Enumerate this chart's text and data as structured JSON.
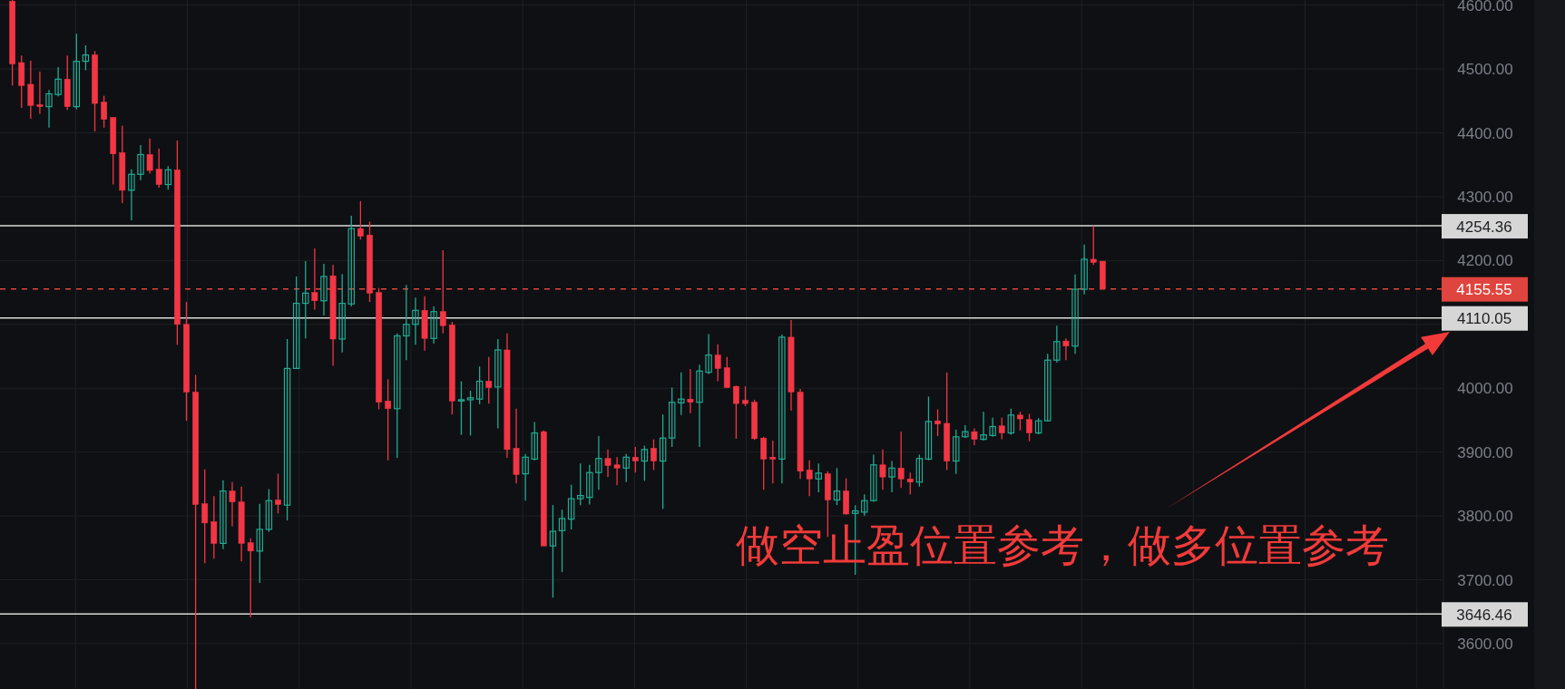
{
  "chart_data": {
    "type": "candlestick",
    "categories": [
      null,
      null,
      null,
      null,
      null,
      null,
      null,
      null,
      null,
      null,
      null,
      null,
      null,
      null,
      null,
      null,
      null,
      null,
      null,
      null,
      null,
      null,
      null,
      null,
      null,
      null,
      null,
      null,
      null,
      null,
      null,
      null,
      null,
      null,
      null,
      null,
      null,
      null,
      null,
      null,
      null,
      null,
      null,
      null,
      null,
      null,
      null,
      null,
      null,
      null,
      null,
      null,
      null,
      null,
      null,
      null,
      null,
      null,
      null,
      null,
      null,
      null,
      null,
      null,
      null,
      null,
      null,
      null,
      null,
      null,
      null,
      null,
      null,
      null,
      null,
      null,
      null,
      null,
      null,
      null,
      null,
      null,
      null,
      null,
      null,
      null,
      null,
      null,
      null,
      null,
      null,
      null,
      null,
      null,
      null,
      null,
      null,
      null,
      null,
      null,
      null,
      null,
      null,
      null,
      null,
      null,
      null,
      null,
      null,
      null,
      null,
      null,
      null,
      null,
      null,
      null,
      null,
      null,
      null,
      null,
      null,
      null,
      null,
      null,
      null,
      null,
      null,
      null,
      null,
      null,
      null,
      null,
      null,
      null,
      null,
      null,
      null,
      null,
      null,
      null,
      null,
      null,
      null,
      null,
      null,
      null,
      null,
      null,
      null,
      null,
      null,
      null,
      null,
      null,
      null,
      null
    ],
    "ohlc": [
      [
        4606,
        4608,
        4474,
        4508
      ],
      [
        4510,
        4521,
        4439,
        4474
      ],
      [
        4476,
        4513,
        4422,
        4443
      ],
      [
        4444,
        4496,
        4430,
        4441
      ],
      [
        4441,
        4467,
        4408,
        4461
      ],
      [
        4460,
        4503,
        4457,
        4484
      ],
      [
        4484,
        4521,
        4436,
        4441
      ],
      [
        4441,
        4555,
        4437,
        4512
      ],
      [
        4512,
        4537,
        4498,
        4522
      ],
      [
        4522,
        4528,
        4402,
        4446
      ],
      [
        4448,
        4458,
        4408,
        4421
      ],
      [
        4424,
        4424,
        4319,
        4367
      ],
      [
        4369,
        4411,
        4290,
        4310
      ],
      [
        4310,
        4343,
        4263,
        4335
      ],
      [
        4335,
        4381,
        4326,
        4366
      ],
      [
        4366,
        4391,
        4336,
        4341
      ],
      [
        4343,
        4375,
        4314,
        4319
      ],
      [
        4319,
        4348,
        4311,
        4342
      ],
      [
        4342,
        4388,
        4068,
        4100
      ],
      [
        4100,
        4135,
        3949,
        3994
      ],
      [
        3994,
        4021,
        3529,
        3818
      ],
      [
        3819,
        3873,
        3726,
        3789
      ],
      [
        3791,
        3831,
        3733,
        3757
      ],
      [
        3757,
        3856,
        3748,
        3839
      ],
      [
        3839,
        3853,
        3784,
        3822
      ],
      [
        3822,
        3846,
        3729,
        3757
      ],
      [
        3758,
        3765,
        3641,
        3745
      ],
      [
        3745,
        3819,
        3695,
        3779
      ],
      [
        3779,
        3842,
        3775,
        3824
      ],
      [
        3825,
        3866,
        3804,
        3818
      ],
      [
        3817,
        4077,
        3793,
        4031
      ],
      [
        4031,
        4175,
        4031,
        4133
      ],
      [
        4133,
        4199,
        4078,
        4149
      ],
      [
        4150,
        4219,
        4123,
        4137
      ],
      [
        4137,
        4195,
        4114,
        4175
      ],
      [
        4176,
        4193,
        4035,
        4077
      ],
      [
        4077,
        4179,
        4056,
        4133
      ],
      [
        4132,
        4270,
        4128,
        4250
      ],
      [
        4250,
        4293,
        4233,
        4238
      ],
      [
        4240,
        4261,
        4135,
        4149
      ],
      [
        4150,
        4157,
        3967,
        3978
      ],
      [
        3980,
        4014,
        3887,
        3968
      ],
      [
        3968,
        4086,
        3891,
        4082
      ],
      [
        4082,
        4162,
        4044,
        4100
      ],
      [
        4100,
        4142,
        4068,
        4122
      ],
      [
        4122,
        4144,
        4059,
        4078
      ],
      [
        4078,
        4128,
        4070,
        4120
      ],
      [
        4120,
        4216,
        4086,
        4098
      ],
      [
        4099,
        4104,
        3959,
        3980
      ],
      [
        3980,
        4011,
        3927,
        3982
      ],
      [
        3982,
        3996,
        3926,
        3985
      ],
      [
        3983,
        4034,
        3975,
        4011
      ],
      [
        4011,
        4049,
        3976,
        4001
      ],
      [
        4002,
        4077,
        3937,
        4060
      ],
      [
        4060,
        4086,
        3891,
        3904
      ],
      [
        3906,
        3968,
        3851,
        3865
      ],
      [
        3866,
        3897,
        3824,
        3892
      ],
      [
        3889,
        3947,
        3887,
        3930
      ],
      [
        3932,
        3934,
        3753,
        3753
      ],
      [
        3753,
        3817,
        3672,
        3776
      ],
      [
        3777,
        3810,
        3712,
        3796
      ],
      [
        3795,
        3849,
        3779,
        3827
      ],
      [
        3827,
        3882,
        3817,
        3832
      ],
      [
        3829,
        3880,
        3818,
        3868
      ],
      [
        3868,
        3925,
        3841,
        3890
      ],
      [
        3890,
        3904,
        3861,
        3879
      ],
      [
        3880,
        3892,
        3848,
        3875
      ],
      [
        3875,
        3897,
        3853,
        3892
      ],
      [
        3892,
        3908,
        3868,
        3886
      ],
      [
        3886,
        3910,
        3855,
        3904
      ],
      [
        3906,
        3920,
        3872,
        3886
      ],
      [
        3886,
        3959,
        3811,
        3922
      ],
      [
        3922,
        4001,
        3908,
        3978
      ],
      [
        3977,
        4025,
        3958,
        3983
      ],
      [
        3983,
        4030,
        3961,
        3978
      ],
      [
        3978,
        4037,
        3908,
        4027
      ],
      [
        4025,
        4085,
        4022,
        4052
      ],
      [
        4052,
        4069,
        4011,
        4031
      ],
      [
        4032,
        4049,
        4001,
        4001
      ],
      [
        4003,
        4004,
        3921,
        3976
      ],
      [
        3981,
        4003,
        3972,
        3976
      ],
      [
        3978,
        3982,
        3919,
        3921
      ],
      [
        3922,
        3924,
        3841,
        3889
      ],
      [
        3892,
        3918,
        3851,
        3889
      ],
      [
        3889,
        4084,
        3851,
        4080
      ],
      [
        4080,
        4107,
        3965,
        3994
      ],
      [
        3994,
        3999,
        3858,
        3870
      ],
      [
        3872,
        3887,
        3831,
        3858
      ],
      [
        3858,
        3882,
        3837,
        3867
      ],
      [
        3866,
        3870,
        3767,
        3825
      ],
      [
        3825,
        3875,
        3817,
        3839
      ],
      [
        3839,
        3859,
        3802,
        3803
      ],
      [
        3804,
        3817,
        3708,
        3808
      ],
      [
        3806,
        3834,
        3800,
        3824
      ],
      [
        3824,
        3896,
        3822,
        3880
      ],
      [
        3880,
        3904,
        3841,
        3861
      ],
      [
        3861,
        3886,
        3837,
        3875
      ],
      [
        3875,
        3932,
        3844,
        3858
      ],
      [
        3858,
        3868,
        3834,
        3853
      ],
      [
        3853,
        3896,
        3846,
        3890
      ],
      [
        3889,
        3987,
        3887,
        3948
      ],
      [
        3949,
        3967,
        3925,
        3944
      ],
      [
        3945,
        4025,
        3872,
        3886
      ],
      [
        3886,
        3935,
        3866,
        3924
      ],
      [
        3924,
        3942,
        3922,
        3932
      ],
      [
        3932,
        3937,
        3911,
        3920
      ],
      [
        3920,
        3963,
        3918,
        3927
      ],
      [
        3926,
        3954,
        3924,
        3940
      ],
      [
        3941,
        3954,
        3920,
        3930
      ],
      [
        3930,
        3968,
        3927,
        3958
      ],
      [
        3958,
        3963,
        3934,
        3952
      ],
      [
        3951,
        3960,
        3917,
        3930
      ],
      [
        3930,
        3953,
        3928,
        3949
      ],
      [
        3949,
        4054,
        3948,
        4044
      ],
      [
        4044,
        4098,
        4040,
        4073
      ],
      [
        4074,
        4078,
        4044,
        4066
      ],
      [
        4066,
        4178,
        4054,
        4155
      ],
      [
        4155,
        4225,
        4147,
        4202
      ],
      [
        4202,
        4254,
        4193,
        4197
      ],
      [
        4199,
        4199,
        4155.55,
        4155.55
      ],
      null,
      null,
      null,
      null,
      null,
      null,
      null,
      null,
      null,
      null,
      null,
      null,
      null,
      null,
      null,
      null,
      null,
      null,
      null,
      null,
      null,
      null,
      null,
      null,
      null,
      null,
      null,
      null,
      null,
      null,
      null,
      null,
      null,
      null,
      null,
      null
    ],
    "colors": [
      "#f23645",
      "#f23645",
      "#f23645",
      "#f23645",
      "#22ab94",
      "#22ab94",
      "#f23645",
      "#22ab94",
      "#22ab94",
      "#f23645",
      "#f23645",
      "#f23645",
      "#f23645",
      "#22ab94",
      "#22ab94",
      "#f23645",
      "#f23645",
      "#22ab94",
      "#f23645",
      "#f23645",
      "#f23645",
      "#f23645",
      "#f23645",
      "#22ab94",
      "#f23645",
      "#f23645",
      "#f23645",
      "#22ab94",
      "#22ab94",
      "#f23645",
      "#22ab94",
      "#22ab94",
      "#22ab94",
      "#f23645",
      "#22ab94",
      "#f23645",
      "#22ab94",
      "#22ab94",
      "#f23645",
      "#f23645",
      "#f23645",
      "#f23645",
      "#22ab94",
      "#22ab94",
      "#22ab94",
      "#f23645",
      "#22ab94",
      "#f23645",
      "#f23645",
      "#22ab94",
      "#22ab94",
      "#22ab94",
      "#f23645",
      "#22ab94",
      "#f23645",
      "#f23645",
      "#22ab94",
      "#22ab94",
      "#f23645",
      "#22ab94",
      "#22ab94",
      "#22ab94",
      "#22ab94",
      "#22ab94",
      "#22ab94",
      "#f23645",
      "#f23645",
      "#22ab94",
      "#f23645",
      "#22ab94",
      "#f23645",
      "#22ab94",
      "#22ab94",
      "#22ab94",
      "#f23645",
      "#22ab94",
      "#22ab94",
      "#f23645",
      "#f23645",
      "#f23645",
      "#f23645",
      "#f23645",
      "#f23645",
      "#f23645",
      "#22ab94",
      "#f23645",
      "#f23645",
      "#f23645",
      "#22ab94",
      "#f23645",
      "#22ab94",
      "#f23645",
      "#22ab94",
      "#22ab94",
      "#22ab94",
      "#f23645",
      "#22ab94",
      "#f23645",
      "#f23645",
      "#22ab94",
      "#22ab94",
      "#f23645",
      "#f23645",
      "#22ab94",
      "#22ab94",
      "#f23645",
      "#22ab94",
      "#22ab94",
      "#f23645",
      "#22ab94",
      "#f23645",
      "#f23645",
      "#22ab94",
      "#22ab94",
      "#22ab94",
      "#f23645",
      "#22ab94",
      "#22ab94",
      "#f23645",
      "#f23645",
      null,
      null,
      null,
      null,
      null,
      null,
      null,
      null,
      null,
      null,
      null,
      null,
      null,
      null,
      null,
      null,
      null,
      null,
      null,
      null,
      null,
      null,
      null,
      null,
      null,
      null,
      null,
      null,
      null,
      null,
      null,
      null,
      null,
      null,
      null,
      null
    ],
    "ylim": [
      3529,
      4608
    ],
    "yticks": [
      {
        "value": 3600,
        "label": "3600.00"
      },
      {
        "value": 3700,
        "label": "3700.00"
      },
      {
        "value": 3800,
        "label": "3800.00"
      },
      {
        "value": 3900,
        "label": "3900.00"
      },
      {
        "value": 4000,
        "label": "4000.00"
      },
      {
        "value": 4100,
        "label": null
      },
      {
        "value": 4200,
        "label": "4200.00"
      },
      {
        "value": 4300,
        "label": "4300.00"
      },
      {
        "value": 4400,
        "label": "4400.00"
      },
      {
        "value": 4500,
        "label": "4500.00"
      },
      {
        "value": 4600,
        "label": "4600.00"
      }
    ],
    "grid": true,
    "ref_lines": [
      {
        "axis": "y",
        "value": 4254.36,
        "label": "4254.36",
        "color": "#d9d9d9",
        "line_style": "solid"
      },
      {
        "axis": "y",
        "value": 4155.55,
        "label": "4155.55",
        "color": "#e0443e",
        "line_style": "dashed"
      },
      {
        "axis": "y",
        "value": 4110.05,
        "label": "4110.05",
        "color": "#d9d9d9",
        "line_style": "solid"
      },
      {
        "axis": "y",
        "value": 3646.46,
        "label": "3646.46",
        "color": "#d9d9d9",
        "line_style": "solid"
      }
    ],
    "annotations": [
      "做空止盈位置参考，做多位置参考"
    ]
  }
}
